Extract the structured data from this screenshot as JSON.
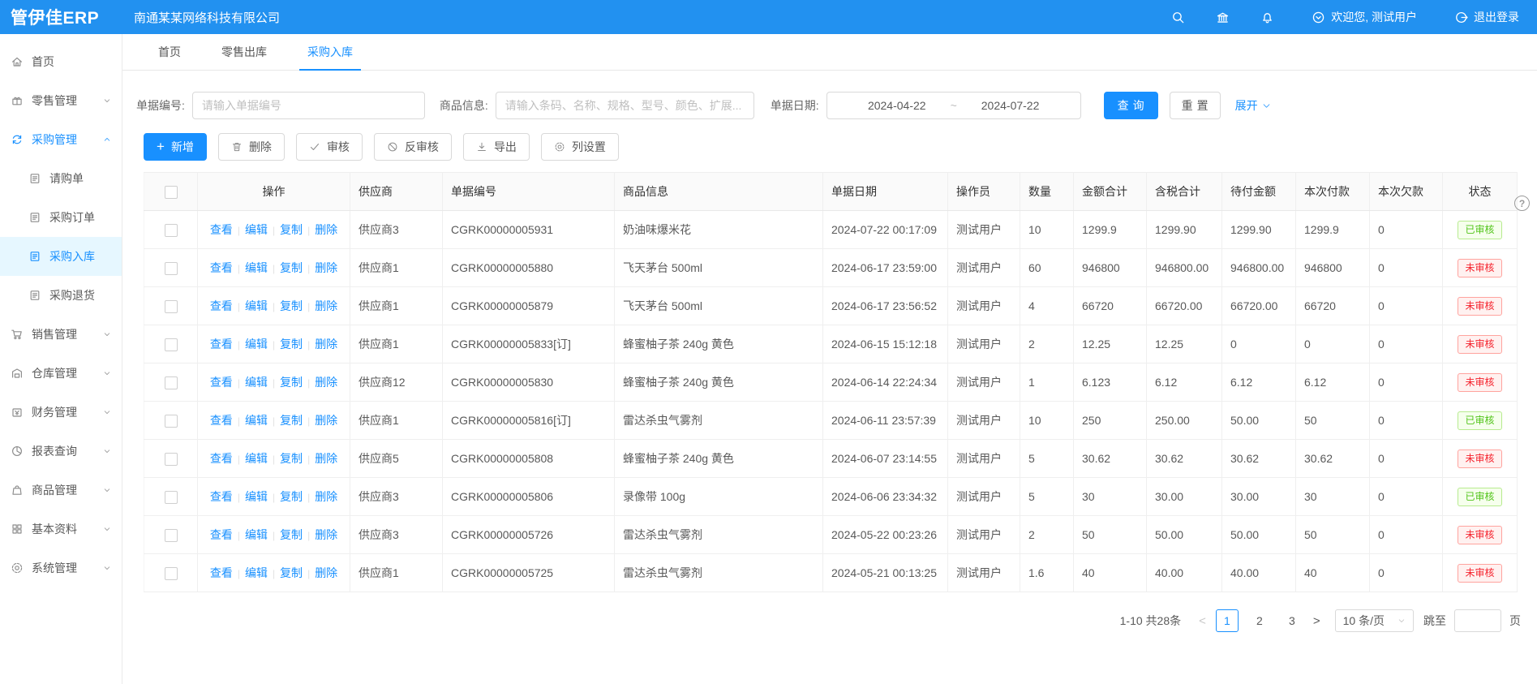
{
  "colors": {
    "primary": "#1890ff",
    "topbar": "#2291f0",
    "approved": "#52c41a",
    "unapproved": "#f5222d"
  },
  "topbar": {
    "logo": "管伊佳ERP",
    "company": "南通某某网络科技有限公司",
    "welcome": "欢迎您, 测试用户",
    "logout": "退出登录"
  },
  "nav_tabs": [
    {
      "label": "首页"
    },
    {
      "label": "零售出库"
    },
    {
      "label": "采购入库"
    }
  ],
  "sidebar": {
    "items": [
      {
        "label": "首页"
      },
      {
        "label": "零售管理"
      },
      {
        "label": "采购管理"
      },
      {
        "label": "请购单"
      },
      {
        "label": "采购订单"
      },
      {
        "label": "采购入库"
      },
      {
        "label": "采购退货"
      },
      {
        "label": "销售管理"
      },
      {
        "label": "仓库管理"
      },
      {
        "label": "财务管理"
      },
      {
        "label": "报表查询"
      },
      {
        "label": "商品管理"
      },
      {
        "label": "基本资料"
      },
      {
        "label": "系统管理"
      }
    ]
  },
  "filters": {
    "bill_no_label": "单据编号:",
    "bill_no_placeholder": "请输入单据编号",
    "product_label": "商品信息:",
    "product_placeholder": "请输入条码、名称、规格、型号、颜色、扩展...",
    "date_label": "单据日期:",
    "date_start": "2024-04-22",
    "date_separator": "~",
    "date_end": "2024-07-22",
    "query_button": "查询",
    "reset_button": "重置",
    "expand_button": "展开"
  },
  "toolbar": {
    "add": "新增",
    "delete": "删除",
    "audit": "审核",
    "unaudit": "反审核",
    "export": "导出",
    "columns": "列设置"
  },
  "table": {
    "headers": [
      "操作",
      "供应商",
      "单据编号",
      "商品信息",
      "单据日期",
      "操作员",
      "数量",
      "金额合计",
      "含税合计",
      "待付金额",
      "本次付款",
      "本次欠款",
      "状态"
    ],
    "row_actions": [
      "查看",
      "编辑",
      "复制",
      "删除"
    ],
    "rows": [
      {
        "supplier": "供应商3",
        "bill_no": "CGRK00000005931",
        "product": "奶油味爆米花",
        "date": "2024-07-22 00:17:09",
        "operator": "测试用户",
        "qty": "10",
        "amount": "1299.9",
        "tax_total": "1299.90",
        "payable": "1299.90",
        "paid": "1299.9",
        "debt": "0",
        "status": "已审核",
        "status_type": "approved"
      },
      {
        "supplier": "供应商1",
        "bill_no": "CGRK00000005880",
        "product": "飞天茅台 500ml",
        "date": "2024-06-17 23:59:00",
        "operator": "测试用户",
        "qty": "60",
        "amount": "946800",
        "tax_total": "946800.00",
        "payable": "946800.00",
        "paid": "946800",
        "debt": "0",
        "status": "未审核",
        "status_type": "unapproved"
      },
      {
        "supplier": "供应商1",
        "bill_no": "CGRK00000005879",
        "product": "飞天茅台 500ml",
        "date": "2024-06-17 23:56:52",
        "operator": "测试用户",
        "qty": "4",
        "amount": "66720",
        "tax_total": "66720.00",
        "payable": "66720.00",
        "paid": "66720",
        "debt": "0",
        "status": "未审核",
        "status_type": "unapproved"
      },
      {
        "supplier": "供应商1",
        "bill_no": "CGRK00000005833[订]",
        "product": "蜂蜜柚子茶 240g 黄色",
        "date": "2024-06-15 15:12:18",
        "operator": "测试用户",
        "qty": "2",
        "amount": "12.25",
        "tax_total": "12.25",
        "payable": "0",
        "paid": "0",
        "debt": "0",
        "status": "未审核",
        "status_type": "unapproved"
      },
      {
        "supplier": "供应商12",
        "bill_no": "CGRK00000005830",
        "product": "蜂蜜柚子茶 240g 黄色",
        "date": "2024-06-14 22:24:34",
        "operator": "测试用户",
        "qty": "1",
        "amount": "6.123",
        "tax_total": "6.12",
        "payable": "6.12",
        "paid": "6.12",
        "debt": "0",
        "status": "未审核",
        "status_type": "unapproved"
      },
      {
        "supplier": "供应商1",
        "bill_no": "CGRK00000005816[订]",
        "product": "雷达杀虫气雾剂",
        "date": "2024-06-11 23:57:39",
        "operator": "测试用户",
        "qty": "10",
        "amount": "250",
        "tax_total": "250.00",
        "payable": "50.00",
        "paid": "50",
        "debt": "0",
        "status": "已审核",
        "status_type": "approved"
      },
      {
        "supplier": "供应商5",
        "bill_no": "CGRK00000005808",
        "product": "蜂蜜柚子茶 240g 黄色",
        "date": "2024-06-07 23:14:55",
        "operator": "测试用户",
        "qty": "5",
        "amount": "30.62",
        "tax_total": "30.62",
        "payable": "30.62",
        "paid": "30.62",
        "debt": "0",
        "status": "未审核",
        "status_type": "unapproved"
      },
      {
        "supplier": "供应商3",
        "bill_no": "CGRK00000005806",
        "product": "录像带 100g",
        "date": "2024-06-06 23:34:32",
        "operator": "测试用户",
        "qty": "5",
        "amount": "30",
        "tax_total": "30.00",
        "payable": "30.00",
        "paid": "30",
        "debt": "0",
        "status": "已审核",
        "status_type": "approved"
      },
      {
        "supplier": "供应商3",
        "bill_no": "CGRK00000005726",
        "product": "雷达杀虫气雾剂",
        "date": "2024-05-22 00:23:26",
        "operator": "测试用户",
        "qty": "2",
        "amount": "50",
        "tax_total": "50.00",
        "payable": "50.00",
        "paid": "50",
        "debt": "0",
        "status": "未审核",
        "status_type": "unapproved"
      },
      {
        "supplier": "供应商1",
        "bill_no": "CGRK00000005725",
        "product": "雷达杀虫气雾剂",
        "date": "2024-05-21 00:13:25",
        "operator": "测试用户",
        "qty": "1.6",
        "amount": "40",
        "tax_total": "40.00",
        "payable": "40.00",
        "paid": "40",
        "debt": "0",
        "status": "未审核",
        "status_type": "unapproved"
      }
    ]
  },
  "pagination": {
    "summary": "1-10 共28条",
    "pages": [
      "1",
      "2",
      "3"
    ],
    "current_page": "1",
    "page_size": "10 条/页",
    "jump_label": "跳至",
    "jump_suffix": "页"
  }
}
